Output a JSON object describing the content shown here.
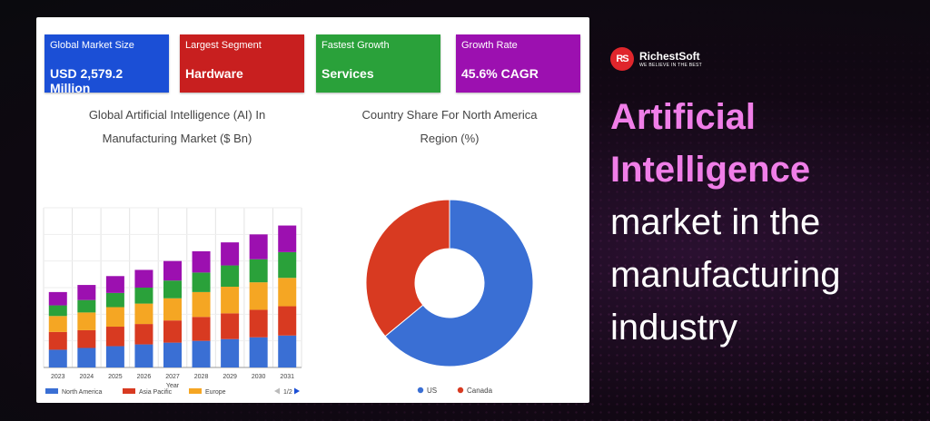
{
  "stats": [
    {
      "label": "Global Market Size",
      "value": "USD 2,579.2 Million",
      "color": "#1b4fd6"
    },
    {
      "label": "Largest Segment",
      "value": "Hardware",
      "color": "#c81f1f"
    },
    {
      "label": "Fastest Growth",
      "value": "Services",
      "color": "#2aa13a"
    },
    {
      "label": "Growth Rate",
      "value": "45.6% CAGR",
      "color": "#9c10b0"
    }
  ],
  "brand": {
    "name": "RichestSoft",
    "tagline": "WE BELIEVE IN THE BEST",
    "logo_text": "RS"
  },
  "headline": {
    "highlight": [
      "Artificial",
      "Intelligence"
    ],
    "plain": [
      "market in the",
      "manufacturing",
      "industry"
    ]
  },
  "pager": {
    "text": "1/2",
    "prev_icon": "triangle-left-icon",
    "next_icon": "triangle-right-icon"
  },
  "chart_data": [
    {
      "type": "bar",
      "stacked": true,
      "title_lines": [
        "Global Artificial Intelligence (AI) In",
        "Manufacturing Market ($ Bn)"
      ],
      "xlabel": "Year",
      "ylabel": "",
      "categories": [
        "2023",
        "2024",
        "2025",
        "2026",
        "2027",
        "2028",
        "2029",
        "2030",
        "2031"
      ],
      "ylim": [
        0,
        18
      ],
      "grid": true,
      "legend_position": "bottom",
      "series": [
        {
          "name": "North America",
          "color": "#3a6fd4",
          "values": [
            2.0,
            2.2,
            2.4,
            2.6,
            2.8,
            3.0,
            3.2,
            3.4,
            3.6
          ]
        },
        {
          "name": "Asia Pacific",
          "color": "#d83a21",
          "values": [
            2.0,
            2.0,
            2.2,
            2.3,
            2.5,
            2.7,
            2.9,
            3.1,
            3.3
          ]
        },
        {
          "name": "Europe",
          "color": "#f5a623",
          "values": [
            1.8,
            2.0,
            2.2,
            2.3,
            2.5,
            2.8,
            3.0,
            3.1,
            3.2
          ]
        },
        {
          "name": "",
          "color": "#2aa13a",
          "values": [
            1.2,
            1.4,
            1.6,
            1.8,
            2.0,
            2.2,
            2.4,
            2.6,
            2.9
          ]
        },
        {
          "name": "",
          "color": "#9c10b0",
          "values": [
            1.5,
            1.7,
            1.9,
            2.0,
            2.2,
            2.4,
            2.6,
            2.8,
            3.0
          ]
        }
      ]
    },
    {
      "type": "pie",
      "donut": true,
      "title_lines": [
        "Country Share For North America",
        "Region (%)"
      ],
      "legend_position": "bottom",
      "labels": [
        "US",
        "Canada"
      ],
      "values": [
        64,
        36
      ],
      "colors": [
        "#3a6fd4",
        "#d83a21"
      ]
    }
  ]
}
